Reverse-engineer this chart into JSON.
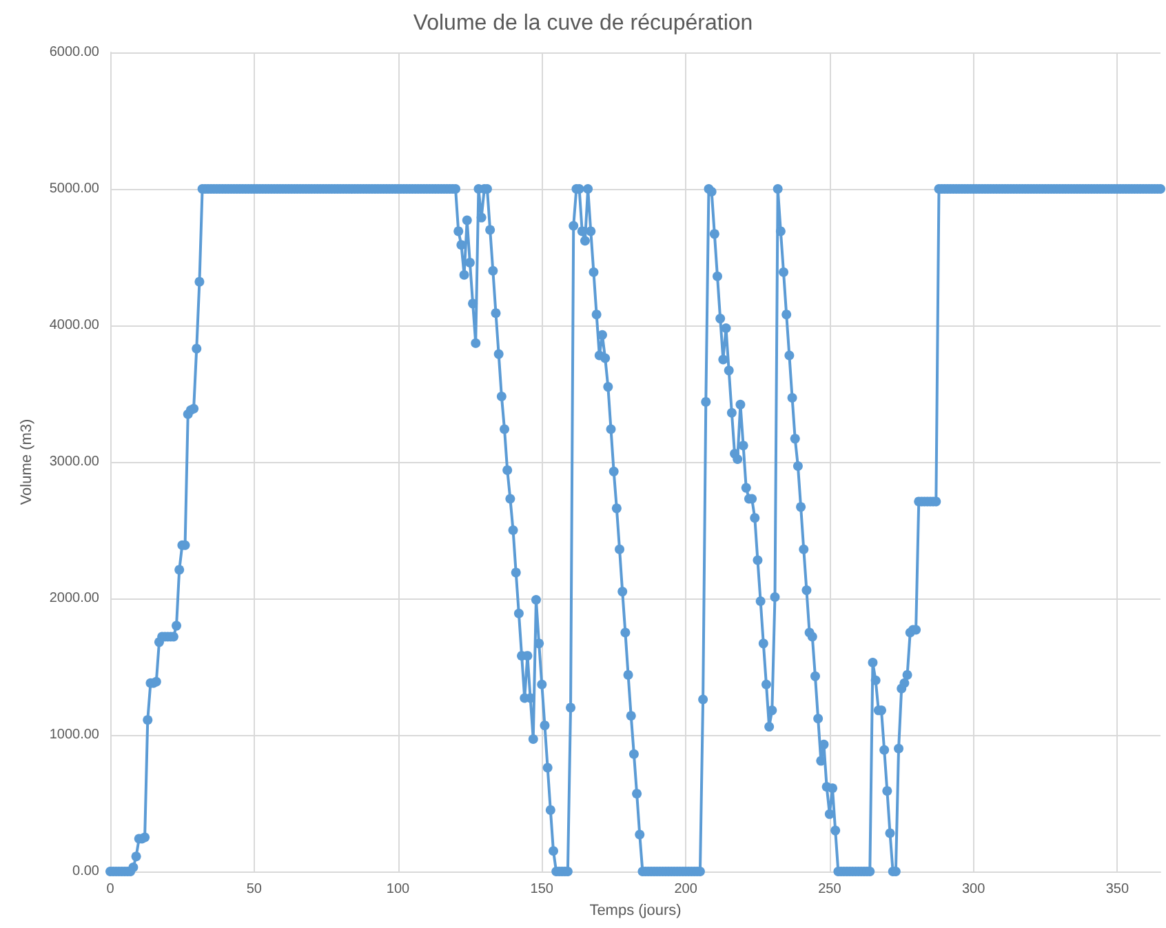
{
  "chart_data": {
    "type": "line",
    "title": "Volume de la cuve de récupération",
    "xlabel": "Temps (jours)",
    "ylabel": "Volume (m3)",
    "x": [
      0,
      1,
      2,
      3,
      4,
      5,
      6,
      7,
      8,
      9,
      10,
      11,
      12,
      13,
      14,
      15,
      16,
      17,
      18,
      19,
      20,
      21,
      22,
      23,
      24,
      25,
      26,
      27,
      28,
      29,
      30,
      31,
      32,
      33,
      34,
      35,
      36,
      37,
      38,
      39,
      40,
      41,
      42,
      43,
      44,
      45,
      46,
      47,
      48,
      49,
      50,
      51,
      52,
      53,
      54,
      55,
      56,
      57,
      58,
      59,
      60,
      61,
      62,
      63,
      64,
      65,
      66,
      67,
      68,
      69,
      70,
      71,
      72,
      73,
      74,
      75,
      76,
      77,
      78,
      79,
      80,
      81,
      82,
      83,
      84,
      85,
      86,
      87,
      88,
      89,
      90,
      91,
      92,
      93,
      94,
      95,
      96,
      97,
      98,
      99,
      100,
      101,
      102,
      103,
      104,
      105,
      106,
      107,
      108,
      109,
      110,
      111,
      112,
      113,
      114,
      115,
      116,
      117,
      118,
      119,
      120,
      121,
      122,
      123,
      124,
      125,
      126,
      127,
      128,
      129,
      130,
      131,
      132,
      133,
      134,
      135,
      136,
      137,
      138,
      139,
      140,
      141,
      142,
      143,
      144,
      145,
      146,
      147,
      148,
      149,
      150,
      151,
      152,
      153,
      154,
      155,
      156,
      157,
      158,
      159,
      160,
      161,
      162,
      163,
      164,
      165,
      166,
      167,
      168,
      169,
      170,
      171,
      172,
      173,
      174,
      175,
      176,
      177,
      178,
      179,
      180,
      181,
      182,
      183,
      184,
      185,
      186,
      187,
      188,
      189,
      190,
      191,
      192,
      193,
      194,
      195,
      196,
      197,
      198,
      199,
      200,
      201,
      202,
      203,
      204,
      205,
      206,
      207,
      208,
      209,
      210,
      211,
      212,
      213,
      214,
      215,
      216,
      217,
      218,
      219,
      220,
      221,
      222,
      223,
      224,
      225,
      226,
      227,
      228,
      229,
      230,
      231,
      232,
      233,
      234,
      235,
      236,
      237,
      238,
      239,
      240,
      241,
      242,
      243,
      244,
      245,
      246,
      247,
      248,
      249,
      250,
      251,
      252,
      253,
      254,
      255,
      256,
      257,
      258,
      259,
      260,
      261,
      262,
      263,
      264,
      265,
      266,
      267,
      268,
      269,
      270,
      271,
      272,
      273,
      274,
      275,
      276,
      277,
      278,
      279,
      280,
      281,
      282,
      283,
      284,
      285,
      286,
      287,
      288,
      289,
      290,
      291,
      292,
      293,
      294,
      295,
      296,
      297,
      298,
      299,
      300,
      301,
      302,
      303,
      304,
      305,
      306,
      307,
      308,
      309,
      310,
      311,
      312,
      313,
      314,
      315,
      316,
      317,
      318,
      319,
      320,
      321,
      322,
      323,
      324,
      325,
      326,
      327,
      328,
      329,
      330,
      331,
      332,
      333,
      334,
      335,
      336,
      337,
      338,
      339,
      340,
      341,
      342,
      343,
      344,
      345,
      346,
      347,
      348,
      349,
      350,
      351,
      352,
      353,
      354,
      355,
      356,
      357,
      358,
      359,
      360,
      361,
      362,
      363,
      364,
      365
    ],
    "series": [
      {
        "color": "#5b9bd5",
        "values": [
          0,
          0,
          0,
          0,
          0,
          0,
          0,
          0,
          30,
          110,
          240,
          240,
          250,
          1110,
          1380,
          1380,
          1390,
          1680,
          1720,
          1720,
          1720,
          1720,
          1720,
          1800,
          2210,
          2390,
          2390,
          3350,
          3380,
          3390,
          3830,
          4320,
          5000,
          5000,
          5000,
          5000,
          5000,
          5000,
          5000,
          5000,
          5000,
          5000,
          5000,
          5000,
          5000,
          5000,
          5000,
          5000,
          5000,
          5000,
          5000,
          5000,
          5000,
          5000,
          5000,
          5000,
          5000,
          5000,
          5000,
          5000,
          5000,
          5000,
          5000,
          5000,
          5000,
          5000,
          5000,
          5000,
          5000,
          5000,
          5000,
          5000,
          5000,
          5000,
          5000,
          5000,
          5000,
          5000,
          5000,
          5000,
          5000,
          5000,
          5000,
          5000,
          5000,
          5000,
          5000,
          5000,
          5000,
          5000,
          5000,
          5000,
          5000,
          5000,
          5000,
          5000,
          5000,
          5000,
          5000,
          5000,
          5000,
          5000,
          5000,
          5000,
          5000,
          5000,
          5000,
          5000,
          5000,
          5000,
          5000,
          5000,
          5000,
          5000,
          5000,
          5000,
          5000,
          5000,
          5000,
          5000,
          5000,
          4690,
          4590,
          4370,
          4770,
          4460,
          4160,
          3870,
          5000,
          4790,
          5000,
          5000,
          4700,
          4400,
          4090,
          3790,
          3480,
          3240,
          2940,
          2730,
          2500,
          2190,
          1890,
          1580,
          1270,
          1580,
          1270,
          970,
          1990,
          1670,
          1370,
          1070,
          760,
          450,
          150,
          0,
          0,
          0,
          0,
          0,
          1200,
          4730,
          5000,
          5000,
          4690,
          4620,
          5000,
          4690,
          4390,
          4080,
          3780,
          3930,
          3760,
          3550,
          3240,
          2930,
          2660,
          2360,
          2050,
          1750,
          1440,
          1140,
          860,
          570,
          270,
          0,
          0,
          0,
          0,
          0,
          0,
          0,
          0,
          0,
          0,
          0,
          0,
          0,
          0,
          0,
          0,
          0,
          0,
          0,
          0,
          0,
          1260,
          3440,
          5000,
          4980,
          4670,
          4360,
          4050,
          3750,
          3980,
          3670,
          3360,
          3060,
          3020,
          3420,
          3120,
          2810,
          2730,
          2730,
          2590,
          2280,
          1980,
          1670,
          1370,
          1060,
          1180,
          2010,
          5000,
          4690,
          4390,
          4080,
          3780,
          3470,
          3170,
          2970,
          2670,
          2360,
          2060,
          1750,
          1720,
          1430,
          1120,
          810,
          930,
          620,
          420,
          610,
          300,
          0,
          0,
          0,
          0,
          0,
          0,
          0,
          0,
          0,
          0,
          0,
          0,
          1530,
          1400,
          1180,
          1180,
          890,
          590,
          280,
          0,
          0,
          900,
          1340,
          1380,
          1440,
          1750,
          1770,
          1770,
          2710,
          2710,
          2710,
          2710,
          2710,
          2710,
          2710,
          5000,
          5000,
          5000,
          5000,
          5000,
          5000,
          5000,
          5000,
          5000,
          5000,
          5000,
          5000,
          5000,
          5000,
          5000,
          5000,
          5000,
          5000,
          5000,
          5000,
          5000,
          5000,
          5000,
          5000,
          5000,
          5000,
          5000,
          5000,
          5000,
          5000,
          5000,
          5000,
          5000,
          5000,
          5000,
          5000,
          5000,
          5000,
          5000,
          5000,
          5000,
          5000,
          5000,
          5000,
          5000,
          5000,
          5000,
          5000,
          5000,
          5000,
          5000,
          5000,
          5000,
          5000,
          5000,
          5000,
          5000,
          5000,
          5000,
          5000,
          5000,
          5000,
          5000,
          5000,
          5000,
          5000,
          5000,
          5000,
          5000,
          5000,
          5000,
          5000,
          5000,
          5000,
          5000,
          5000,
          5000,
          5000
        ]
      }
    ],
    "xlim": [
      0,
      365
    ],
    "xticks": [
      0,
      50,
      100,
      150,
      200,
      250,
      300,
      350
    ],
    "ylim": [
      0,
      6000
    ],
    "yticks": [
      {
        "value": 0,
        "label": "0.00"
      },
      {
        "value": 1000,
        "label": "1000.00"
      },
      {
        "value": 2000,
        "label": "2000.00"
      },
      {
        "value": 3000,
        "label": "3000.00"
      },
      {
        "value": 4000,
        "label": "4000.00"
      },
      {
        "value": 5000,
        "label": "5000.00"
      },
      {
        "value": 6000,
        "label": "6000.00"
      }
    ],
    "grid": true,
    "marker": "circle",
    "line_style": "solid"
  }
}
